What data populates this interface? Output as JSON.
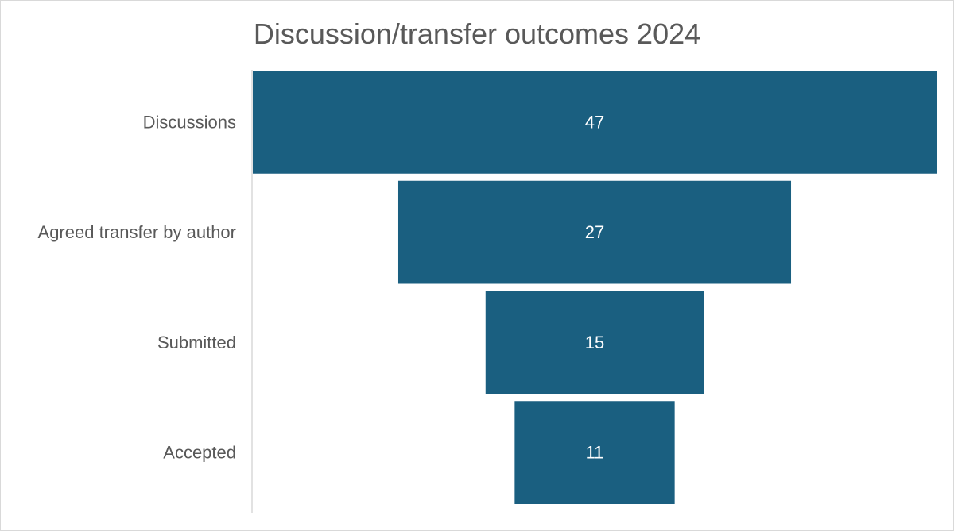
{
  "chart_data": {
    "type": "bar",
    "subtype": "funnel",
    "title": "Discussion/transfer outcomes 2024",
    "categories": [
      "Discussions",
      "Agreed transfer by author",
      "Submitted",
      "Accepted"
    ],
    "values": [
      47,
      27,
      15,
      11
    ],
    "xlabel": "",
    "ylabel": "",
    "grid": false,
    "legend": "none",
    "bar_color": "#1a5f80"
  }
}
